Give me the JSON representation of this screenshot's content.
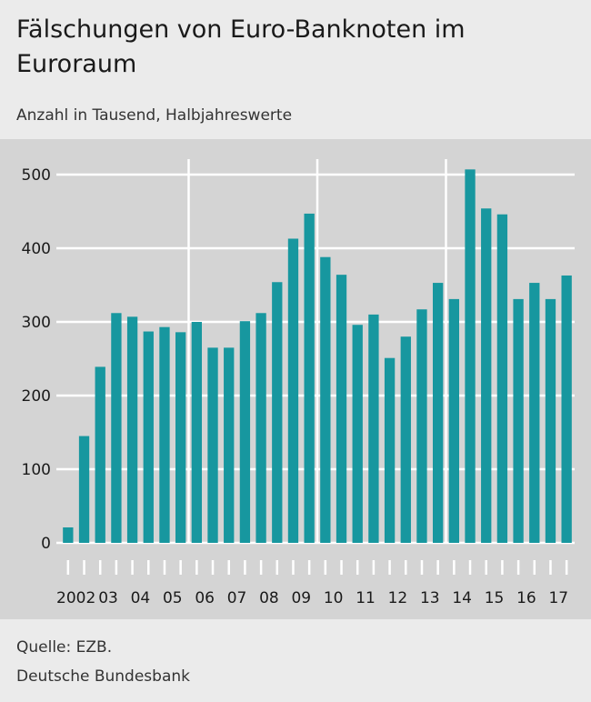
{
  "header": {
    "title": "Fälschungen von Euro-Banknoten im Euroraum",
    "subtitle": "Anzahl in Tausend, Halbjahreswerte"
  },
  "footer": {
    "source": "Quelle: EZB.",
    "organization": "Deutsche Bundesbank"
  },
  "colors": {
    "bar": "#17979f",
    "panel": "#d4d4d4",
    "grid": "#ffffff"
  },
  "chart_data": {
    "type": "bar",
    "title": "Fälschungen von Euro-Banknoten im Euroraum",
    "subtitle": "Anzahl in Tausend, Halbjahreswerte",
    "xlabel": "",
    "ylabel": "",
    "ylim": [
      0,
      520
    ],
    "yticks": [
      0,
      100,
      200,
      300,
      400,
      500
    ],
    "grid": true,
    "legend": "none",
    "year_labels": [
      "2002",
      "03",
      "04",
      "05",
      "06",
      "07",
      "08",
      "09",
      "10",
      "11",
      "12",
      "13",
      "14",
      "15",
      "16",
      "17"
    ],
    "emphasized_year_dividers": [
      "06",
      "10",
      "14"
    ],
    "categories": [
      "2002 H1",
      "2002 H2",
      "2003 H1",
      "2003 H2",
      "2004 H1",
      "2004 H2",
      "2005 H1",
      "2005 H2",
      "2006 H1",
      "2006 H2",
      "2007 H1",
      "2007 H2",
      "2008 H1",
      "2008 H2",
      "2009 H1",
      "2009 H2",
      "2010 H1",
      "2010 H2",
      "2011 H1",
      "2011 H2",
      "2012 H1",
      "2012 H2",
      "2013 H1",
      "2013 H2",
      "2014 H1",
      "2014 H2",
      "2015 H1",
      "2015 H2",
      "2016 H1",
      "2016 H2",
      "2017 H1",
      "2017 H2"
    ],
    "values": [
      21,
      145,
      239,
      312,
      307,
      287,
      293,
      286,
      300,
      265,
      265,
      301,
      312,
      354,
      413,
      447,
      388,
      364,
      296,
      310,
      251,
      280,
      317,
      353,
      331,
      507,
      454,
      446,
      331,
      353,
      331,
      363
    ]
  }
}
